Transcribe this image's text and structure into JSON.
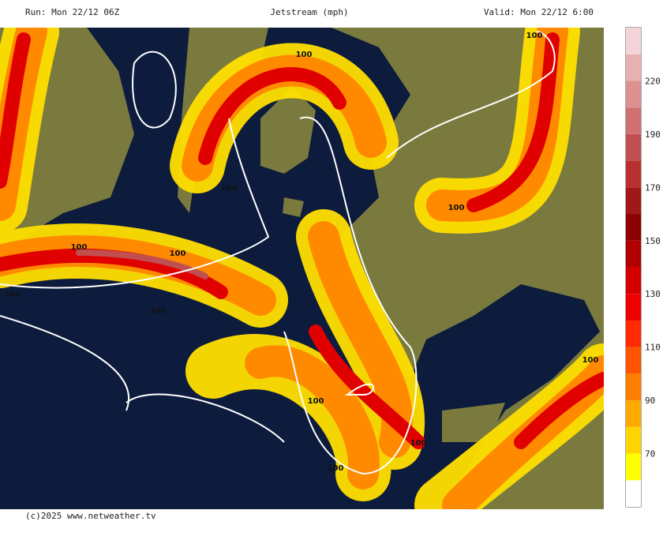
{
  "header": {
    "run": "Run: Mon 22/12 06Z",
    "title": "Jetstream (mph)",
    "valid": "Valid: Mon 22/12 6:00"
  },
  "footer": "(c)2025 www.netweather.tv",
  "colorbar": {
    "labels": [
      70,
      90,
      110,
      130,
      150,
      170,
      190,
      220
    ],
    "colors": [
      "#ffffff",
      "#ffff00",
      "#ffd400",
      "#ffaa00",
      "#ff8000",
      "#ff5500",
      "#ff2a00",
      "#ee0000",
      "#d40000",
      "#b00000",
      "#8b0000",
      "#a01818",
      "#b83030",
      "#c05050",
      "#d07070",
      "#dc9090",
      "#e8b0b0",
      "#f4d4d8"
    ]
  },
  "map": {
    "contour_labels": [
      "100",
      "100",
      "100",
      "100",
      "100",
      "100",
      "100",
      "100",
      "100",
      "100",
      "100",
      "100"
    ]
  }
}
